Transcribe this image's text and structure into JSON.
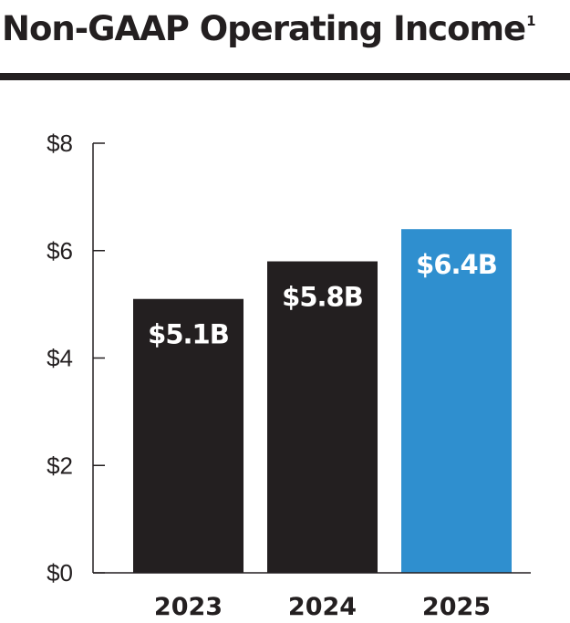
{
  "title": {
    "text": "Non-GAAP Operating Income",
    "footnote": "1"
  },
  "colors": {
    "bar_default": "#231f20",
    "bar_highlight": "#2f8fcf",
    "axis": "#231f20",
    "text": "#231f20",
    "label_on_bar": "#ffffff"
  },
  "chart_data": {
    "type": "bar",
    "title": "Non-GAAP Operating Income",
    "categories": [
      "2023",
      "2024",
      "2025"
    ],
    "values": [
      5.1,
      5.8,
      6.4
    ],
    "data_labels": [
      "$5.1B",
      "$5.8B",
      "$6.4B"
    ],
    "highlight_index": 2,
    "ylim": [
      0,
      8
    ],
    "yticks": [
      0,
      2,
      4,
      6,
      8
    ],
    "ytick_labels": [
      "$0",
      "$2",
      "$4",
      "$6",
      "$8"
    ],
    "xlabel": "",
    "ylabel": "",
    "grid": false,
    "legend": "none"
  }
}
